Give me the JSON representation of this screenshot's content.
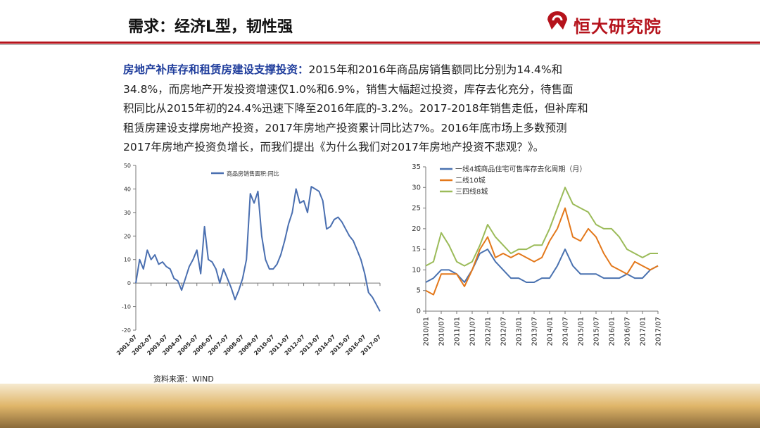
{
  "header": {
    "title": "需求：经济L型，韧性强",
    "logo": "恒大研究院"
  },
  "paragraph": {
    "lead": "房地产补库存和租赁房建设支撑投资：",
    "lines": [
      "2015年和2016年商品房销售额同比分别为14.4%和",
      "34.8%，而房地产开发投资增速仅1.0%和6.9%，销售大幅超过投资，库存去化充分，待售面",
      "积同比从2015年初的24.4%迅速下降至2016年底的-3.2%。2017-2018年销售走低，但补库和",
      "租赁房建设支撑房地产投资，2017年房地产投资累计同比达7%。2016年底市场上多数预测",
      "2017年房地产投资负增长，而我们提出《为什么我们对2017年房地产投资不悲观？》。"
    ]
  },
  "source": "资料来源：WIND",
  "chart_data": [
    {
      "type": "line",
      "legend": "upper center",
      "x": [
        "2001-07",
        "2001-10",
        "2002-01",
        "2002-04",
        "2002-07",
        "2002-10",
        "2003-01",
        "2003-04",
        "2003-07",
        "2003-10",
        "2004-01",
        "2004-04",
        "2004-07",
        "2004-10",
        "2005-01",
        "2005-04",
        "2005-07",
        "2005-10",
        "2006-01",
        "2006-04",
        "2006-07",
        "2006-10",
        "2007-01",
        "2007-04",
        "2007-07",
        "2007-10",
        "2008-01",
        "2008-04",
        "2008-07",
        "2008-10",
        "2009-01",
        "2009-04",
        "2009-07",
        "2009-10",
        "2010-01",
        "2010-04",
        "2010-07",
        "2010-10",
        "2011-01",
        "2011-04",
        "2011-07",
        "2011-10",
        "2012-01",
        "2012-04",
        "2012-07",
        "2012-10",
        "2013-01",
        "2013-04",
        "2013-07",
        "2013-10",
        "2014-01",
        "2014-04",
        "2014-07",
        "2014-10",
        "2015-01",
        "2015-04",
        "2015-07",
        "2015-10",
        "2016-01",
        "2016-04",
        "2016-07",
        "2016-10",
        "2017-01",
        "2017-04",
        "2017-07"
      ],
      "xticks": [
        "2001-07",
        "2002-07",
        "2003-07",
        "2004-07",
        "2005-07",
        "2006-07",
        "2007-07",
        "2008-07",
        "2009-07",
        "2010-07",
        "2011-07",
        "2012-07",
        "2013-07",
        "2014-07",
        "2015-07",
        "2016-07",
        "2017-07"
      ],
      "series": [
        {
          "name": "商品房销售面积:同比",
          "color": "#4a6fb0",
          "values": [
            0,
            10,
            6,
            14,
            10,
            12,
            8,
            9,
            7,
            6,
            2,
            1,
            -3,
            2,
            7,
            10,
            14,
            4,
            24,
            10,
            9,
            6,
            0,
            6,
            2,
            -2,
            -7,
            -3,
            2,
            10,
            38,
            34,
            39,
            20,
            10,
            6,
            6,
            8,
            12,
            18,
            25,
            30,
            40,
            34,
            35,
            30,
            41,
            40,
            39,
            35,
            23,
            24,
            27,
            28,
            26,
            23,
            20,
            18,
            14,
            10,
            4,
            -4,
            -6,
            -9,
            -12
          ]
        }
      ],
      "ylim": [
        -20,
        50
      ],
      "yticks": [
        -20,
        -10,
        0,
        10,
        20,
        30,
        40,
        50
      ]
    },
    {
      "type": "line",
      "legend": "upper left",
      "x": [
        "2010/01",
        "2010/04",
        "2010/07",
        "2010/10",
        "2011/01",
        "2011/04",
        "2011/07",
        "2011/10",
        "2012/01",
        "2012/04",
        "2012/07",
        "2012/10",
        "2013/01",
        "2013/04",
        "2013/07",
        "2013/10",
        "2014/01",
        "2014/04",
        "2014/07",
        "2014/10",
        "2015/01",
        "2015/04",
        "2015/07",
        "2015/10",
        "2016/01",
        "2016/04",
        "2016/07",
        "2016/10",
        "2017/01",
        "2017/04",
        "2017/07"
      ],
      "xticks": [
        "2010/01",
        "2010/07",
        "2011/01",
        "2011/07",
        "2012/01",
        "2012/07",
        "2013/01",
        "2013/07",
        "2014/01",
        "2014/07",
        "2015/01",
        "2015/07",
        "2016/01",
        "2016/07",
        "2017/01",
        "2017/07"
      ],
      "series": [
        {
          "name": "一线4城商品住宅可售库存去化周期（月）",
          "color": "#4a72b0",
          "values": [
            7,
            8,
            10,
            10,
            9,
            7,
            10,
            14,
            15,
            12,
            10,
            8,
            8,
            7,
            7,
            8,
            8,
            11,
            15,
            11,
            9,
            9,
            9,
            8,
            8,
            8,
            9,
            8,
            8,
            10,
            11
          ]
        },
        {
          "name": "二线10城",
          "color": "#e3781b",
          "values": [
            5,
            4,
            9,
            9,
            9,
            6,
            10,
            15,
            18,
            13,
            14,
            13,
            14,
            13,
            12,
            13,
            17,
            20,
            25,
            18,
            17,
            20,
            18,
            14,
            11,
            10,
            9,
            12,
            11,
            10,
            11
          ]
        },
        {
          "name": "三四线8城",
          "color": "#9bbb59",
          "values": [
            11,
            12,
            19,
            16,
            12,
            11,
            12,
            16,
            21,
            18,
            16,
            14,
            15,
            15,
            16,
            16,
            20,
            25,
            30,
            26,
            25,
            24,
            21,
            20,
            20,
            18,
            15,
            14,
            13,
            14,
            14
          ]
        }
      ],
      "ylim": [
        0,
        35
      ],
      "yticks": [
        0,
        5,
        10,
        15,
        20,
        25,
        30,
        35
      ]
    }
  ]
}
